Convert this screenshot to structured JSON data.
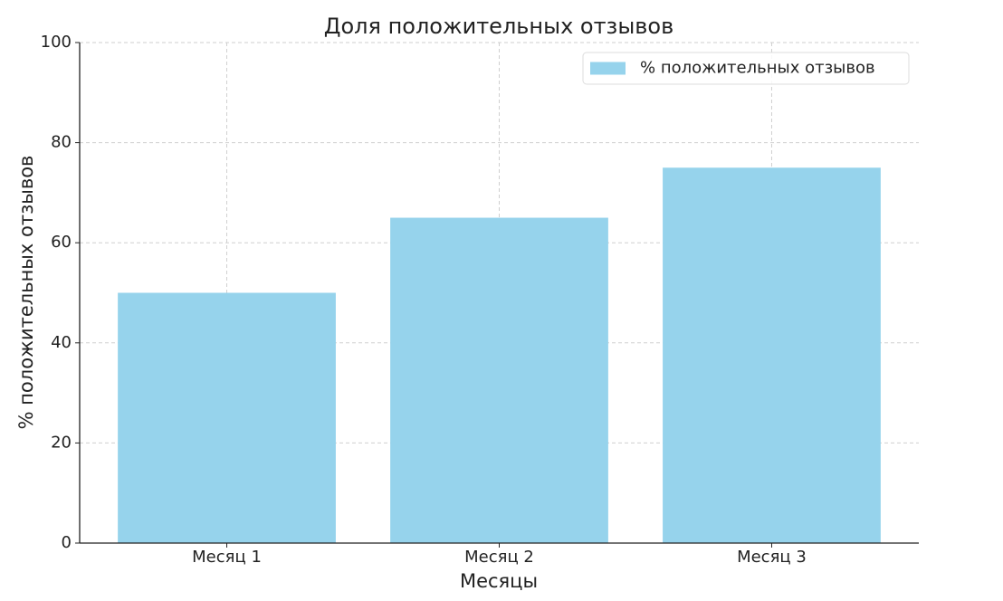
{
  "chart_data": {
    "type": "bar",
    "title": "Доля положительных отзывов",
    "x_label": "Месяцы",
    "y_label": "% положительных отзывов",
    "categories": [
      "Месяц 1",
      "Месяц 2",
      "Месяц 3"
    ],
    "series": [
      {
        "name": "% положительных отзывов",
        "color": "#96d3ec",
        "values": [
          50,
          65,
          75
        ]
      }
    ],
    "ylim": [
      0,
      100
    ],
    "yticks": [
      0,
      20,
      40,
      60,
      80,
      100
    ],
    "grid": true,
    "legend": "upper right"
  }
}
